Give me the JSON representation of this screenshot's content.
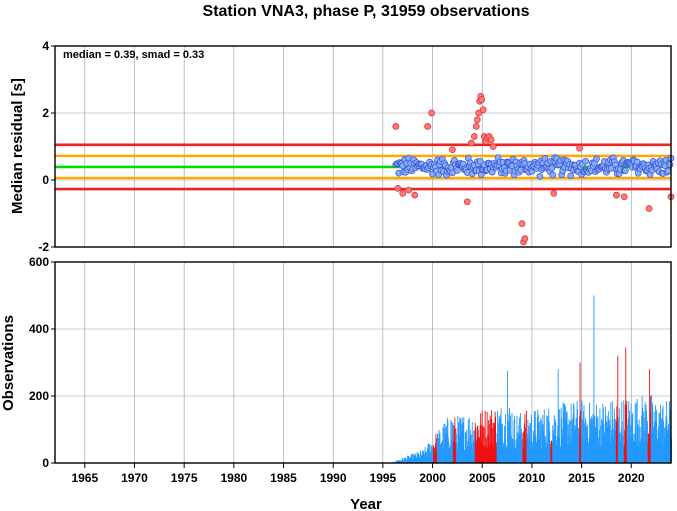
{
  "chart_title": "Station VNA3, phase P, 31959 observations",
  "chart_data": [
    {
      "type": "scatter",
      "ylabel": "Median residual [s]",
      "annotation": "median = 0.39, smad = 0.33",
      "xlim": [
        1962,
        2024
      ],
      "ylim": [
        -2,
        4
      ],
      "yticks": [
        "-2",
        "0",
        "2",
        "4"
      ],
      "reference_lines": [
        {
          "value": 0.39,
          "color": "#00dd00"
        },
        {
          "value": 0.72,
          "color": "#ffaa00"
        },
        {
          "value": 0.06,
          "color": "#ffaa00"
        },
        {
          "value": 1.05,
          "color": "#ee2222"
        },
        {
          "value": -0.27,
          "color": "#ee2222"
        }
      ],
      "outlier_points": [
        [
          1996.3,
          1.6
        ],
        [
          1996.5,
          -0.25
        ],
        [
          1997.0,
          -0.4
        ],
        [
          1997.6,
          -0.3
        ],
        [
          1998.2,
          -0.45
        ],
        [
          1999.5,
          1.6
        ],
        [
          1999.9,
          2.0
        ],
        [
          2002.0,
          0.9
        ],
        [
          2003.5,
          -0.65
        ],
        [
          2003.9,
          1.1
        ],
        [
          2004.2,
          1.3
        ],
        [
          2004.4,
          1.6
        ],
        [
          2004.5,
          1.8
        ],
        [
          2004.65,
          2.0
        ],
        [
          2004.75,
          2.35
        ],
        [
          2004.85,
          2.5
        ],
        [
          2004.95,
          2.4
        ],
        [
          2005.1,
          2.1
        ],
        [
          2005.2,
          1.3
        ],
        [
          2005.35,
          1.15
        ],
        [
          2005.5,
          1.25
        ],
        [
          2005.7,
          1.3
        ],
        [
          2005.9,
          1.2
        ],
        [
          2006.1,
          1.0
        ],
        [
          2009.0,
          -1.3
        ],
        [
          2009.15,
          -1.85
        ],
        [
          2009.3,
          -1.75
        ],
        [
          2012.2,
          -0.4
        ],
        [
          2014.8,
          0.95
        ],
        [
          2018.5,
          -0.45
        ],
        [
          2019.3,
          -0.5
        ],
        [
          2021.8,
          -0.85
        ],
        [
          2024.0,
          -0.5
        ]
      ],
      "regular_points_range": {
        "start": 1996.3,
        "end": 2024.0,
        "center": 0.4,
        "spread": 0.32
      }
    },
    {
      "type": "bar",
      "ylabel": "Observations",
      "xlabel": "Year",
      "xlim": [
        1962,
        2024
      ],
      "ylim": [
        0,
        600
      ],
      "yticks": [
        "0",
        "200",
        "400",
        "600"
      ],
      "xticks": [
        "1965",
        "1970",
        "1975",
        "1980",
        "1985",
        "1990",
        "1995",
        "2000",
        "2005",
        "2010",
        "2015",
        "2020"
      ],
      "bar_color": "#2299ff",
      "outlier_bar_color": "#ee1111",
      "notable_bars": [
        {
          "x": 2016.2,
          "value": 500
        },
        {
          "x": 2019.4,
          "value": 345
        },
        {
          "x": 2018.6,
          "value": 320
        },
        {
          "x": 2021.8,
          "value": 280
        },
        {
          "x": 2007.5,
          "value": 275
        },
        {
          "x": 2012.6,
          "value": 280
        },
        {
          "x": 2014.8,
          "value": 300
        }
      ],
      "red_bar_ranges": [
        [
          2004.2,
          2006.4
        ],
        [
          2000.0,
          2000.4
        ],
        [
          2002.0,
          2002.3
        ],
        [
          2009.0,
          2009.4
        ],
        [
          2011.8,
          2012.0
        ],
        [
          2014.7,
          2014.9
        ],
        [
          2018.4,
          2018.6
        ],
        [
          2019.2,
          2019.5
        ],
        [
          2021.6,
          2021.9
        ]
      ]
    }
  ]
}
